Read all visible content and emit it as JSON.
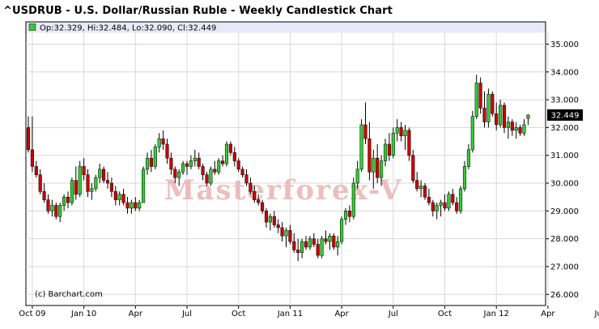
{
  "title": "^USDRUB - U.S. Dollar/Russian Ruble - Weekly Candlestick Chart",
  "legend": {
    "text": "Op:32.329, Hi:32.484, Lo:32.090, Cl:32.449",
    "color": "#33cc33"
  },
  "copyright": "(c) Barchart.com",
  "watermark": "Masterforex-V",
  "last_price_label": "32.449",
  "colors": {
    "up": "#33cc33",
    "down": "#cc0000",
    "grid": "#d8d8d8",
    "legend_band": "#e8e8f8",
    "price_tag_bg": "#000000",
    "price_tag_fg": "#ffffff"
  },
  "chart_data": {
    "type": "candlestick",
    "title": "^USDRUB - U.S. Dollar/Russian Ruble - Weekly Candlestick Chart",
    "y_ticks": [
      "35.000",
      "34.000",
      "33.000",
      "32.000",
      "31.000",
      "30.000",
      "29.000",
      "28.000",
      "27.000",
      "26.000"
    ],
    "y_tick_values": [
      35,
      34,
      33,
      32,
      31,
      30,
      29,
      28,
      27,
      26
    ],
    "x_ticks": [
      "Oct 09",
      "Jan 10",
      "Apr",
      "Jul",
      "Oct",
      "Jan 11",
      "Apr",
      "Jul",
      "Oct",
      "Jan 12",
      "Apr",
      "Jul"
    ],
    "x_tick_week_index": [
      1,
      14,
      27,
      40,
      53,
      66,
      79,
      92,
      105,
      118,
      131,
      144
    ],
    "ylim": [
      25.6,
      35.8
    ],
    "y_axis_side": "right",
    "grid": true,
    "candles": [
      [
        0,
        32.0,
        32.4,
        31.1,
        31.2
      ],
      [
        1,
        31.2,
        32.4,
        30.4,
        30.6
      ],
      [
        2,
        30.6,
        30.8,
        30.2,
        30.3
      ],
      [
        3,
        30.3,
        30.5,
        29.6,
        29.7
      ],
      [
        4,
        29.7,
        30.0,
        29.3,
        29.4
      ],
      [
        5,
        29.4,
        29.6,
        28.9,
        29.0
      ],
      [
        6,
        29.0,
        29.4,
        28.8,
        29.2
      ],
      [
        7,
        29.2,
        29.3,
        28.7,
        28.8
      ],
      [
        8,
        28.8,
        29.3,
        28.6,
        29.2
      ],
      [
        9,
        29.2,
        29.6,
        29.0,
        29.5
      ],
      [
        10,
        29.5,
        29.7,
        29.1,
        29.3
      ],
      [
        11,
        29.3,
        30.2,
        29.2,
        30.1
      ],
      [
        12,
        30.1,
        30.6,
        29.4,
        29.6
      ],
      [
        13,
        29.6,
        30.8,
        29.5,
        30.6
      ],
      [
        14,
        30.6,
        30.9,
        30.1,
        30.3
      ],
      [
        15,
        30.3,
        30.5,
        29.5,
        29.7
      ],
      [
        16,
        29.7,
        30.0,
        29.4,
        29.8
      ],
      [
        17,
        29.8,
        30.3,
        29.7,
        30.2
      ],
      [
        18,
        30.2,
        30.7,
        30.0,
        30.5
      ],
      [
        19,
        30.5,
        30.6,
        30.0,
        30.1
      ],
      [
        20,
        30.1,
        30.4,
        29.8,
        30.0
      ],
      [
        21,
        30.0,
        30.2,
        29.5,
        29.7
      ],
      [
        22,
        29.7,
        29.9,
        29.2,
        29.4
      ],
      [
        23,
        29.4,
        29.7,
        29.2,
        29.6
      ],
      [
        24,
        29.6,
        29.8,
        29.2,
        29.3
      ],
      [
        25,
        29.3,
        29.5,
        28.9,
        29.1
      ],
      [
        26,
        29.1,
        29.4,
        28.9,
        29.3
      ],
      [
        27,
        29.3,
        29.5,
        29.0,
        29.1
      ],
      [
        28,
        29.1,
        29.4,
        29.0,
        29.3
      ],
      [
        29,
        29.3,
        30.6,
        29.3,
        30.5
      ],
      [
        30,
        30.5,
        31.1,
        30.3,
        30.9
      ],
      [
        31,
        30.9,
        31.2,
        30.4,
        30.6
      ],
      [
        32,
        30.6,
        31.4,
        30.5,
        31.3
      ],
      [
        33,
        31.3,
        31.8,
        31.1,
        31.6
      ],
      [
        34,
        31.6,
        31.9,
        31.2,
        31.4
      ],
      [
        35,
        31.4,
        31.6,
        30.7,
        30.9
      ],
      [
        36,
        30.9,
        31.1,
        30.3,
        30.5
      ],
      [
        37,
        30.5,
        30.6,
        30.0,
        30.2
      ],
      [
        38,
        30.2,
        30.5,
        29.9,
        30.4
      ],
      [
        39,
        30.4,
        30.8,
        30.3,
        30.7
      ],
      [
        40,
        30.7,
        30.8,
        30.3,
        30.6
      ],
      [
        41,
        30.6,
        31.0,
        30.5,
        30.8
      ],
      [
        42,
        30.8,
        31.2,
        30.6,
        30.9
      ],
      [
        43,
        30.9,
        31.1,
        30.5,
        30.6
      ],
      [
        44,
        30.6,
        30.7,
        30.1,
        30.3
      ],
      [
        45,
        30.3,
        30.4,
        29.9,
        30.0
      ],
      [
        46,
        30.0,
        30.6,
        29.9,
        30.5
      ],
      [
        47,
        30.5,
        30.8,
        30.3,
        30.4
      ],
      [
        48,
        30.4,
        30.9,
        30.3,
        30.8
      ],
      [
        49,
        30.8,
        31.0,
        30.6,
        30.7
      ],
      [
        50,
        30.7,
        31.5,
        30.6,
        31.4
      ],
      [
        51,
        31.4,
        31.5,
        31.0,
        31.1
      ],
      [
        52,
        31.1,
        31.3,
        30.6,
        30.8
      ],
      [
        53,
        30.8,
        30.9,
        30.4,
        30.5
      ],
      [
        54,
        30.5,
        30.6,
        30.2,
        30.3
      ],
      [
        55,
        30.3,
        30.5,
        29.9,
        30.0
      ],
      [
        56,
        30.0,
        30.2,
        29.6,
        29.7
      ],
      [
        57,
        29.7,
        29.9,
        29.3,
        29.4
      ],
      [
        58,
        29.4,
        29.6,
        29.2,
        29.3
      ],
      [
        59,
        29.3,
        29.4,
        28.9,
        29.0
      ],
      [
        60,
        29.0,
        29.1,
        28.4,
        28.6
      ],
      [
        61,
        28.6,
        28.9,
        28.3,
        28.8
      ],
      [
        62,
        28.8,
        29.0,
        28.4,
        28.5
      ],
      [
        63,
        28.5,
        28.7,
        28.2,
        28.4
      ],
      [
        64,
        28.4,
        28.6,
        27.9,
        28.1
      ],
      [
        65,
        28.1,
        28.4,
        27.7,
        28.3
      ],
      [
        66,
        28.3,
        28.5,
        27.8,
        27.9
      ],
      [
        67,
        27.9,
        28.2,
        27.5,
        27.6
      ],
      [
        68,
        27.6,
        28.0,
        27.2,
        27.5
      ],
      [
        69,
        27.5,
        28.0,
        27.3,
        27.9
      ],
      [
        70,
        27.9,
        28.1,
        27.6,
        27.7
      ],
      [
        71,
        27.7,
        28.1,
        27.6,
        28.0
      ],
      [
        72,
        28.0,
        28.2,
        27.7,
        27.8
      ],
      [
        73,
        27.8,
        28.0,
        27.3,
        27.4
      ],
      [
        74,
        27.4,
        28.1,
        27.3,
        28.0
      ],
      [
        75,
        28.0,
        28.3,
        27.8,
        27.9
      ],
      [
        76,
        27.9,
        28.2,
        27.6,
        28.1
      ],
      [
        77,
        28.1,
        28.2,
        27.6,
        27.7
      ],
      [
        78,
        27.7,
        28.1,
        27.4,
        27.9
      ],
      [
        79,
        27.9,
        28.8,
        27.8,
        28.7
      ],
      [
        80,
        28.7,
        29.1,
        28.5,
        29.0
      ],
      [
        81,
        29.0,
        29.2,
        28.6,
        28.8
      ],
      [
        82,
        28.8,
        30.2,
        28.7,
        30.0
      ],
      [
        83,
        30.0,
        30.8,
        29.8,
        30.5
      ],
      [
        84,
        30.5,
        32.3,
        30.4,
        32.1
      ],
      [
        85,
        32.1,
        32.9,
        31.4,
        31.6
      ],
      [
        86,
        31.6,
        32.2,
        30.1,
        30.4
      ],
      [
        87,
        30.4,
        31.2,
        29.8,
        30.9
      ],
      [
        88,
        30.9,
        31.4,
        30.0,
        30.2
      ],
      [
        89,
        30.2,
        31.0,
        29.9,
        30.8
      ],
      [
        90,
        30.8,
        31.6,
        30.6,
        31.4
      ],
      [
        91,
        31.4,
        31.8,
        30.8,
        31.0
      ],
      [
        92,
        31.0,
        32.0,
        30.9,
        31.8
      ],
      [
        93,
        31.8,
        32.3,
        31.5,
        32.0
      ],
      [
        94,
        32.0,
        32.2,
        31.5,
        31.7
      ],
      [
        95,
        31.7,
        32.1,
        31.2,
        31.9
      ],
      [
        96,
        31.9,
        32.0,
        30.8,
        31.0
      ],
      [
        97,
        31.0,
        31.2,
        30.0,
        30.1
      ],
      [
        98,
        30.1,
        30.4,
        29.7,
        29.8
      ],
      [
        99,
        29.8,
        30.1,
        29.5,
        29.9
      ],
      [
        100,
        29.9,
        30.0,
        29.4,
        29.5
      ],
      [
        101,
        29.5,
        29.8,
        29.2,
        29.3
      ],
      [
        102,
        29.3,
        29.4,
        28.8,
        29.0
      ],
      [
        103,
        29.0,
        29.3,
        28.7,
        29.2
      ],
      [
        104,
        29.2,
        29.4,
        28.8,
        29.3
      ],
      [
        105,
        29.3,
        29.6,
        29.0,
        29.1
      ],
      [
        106,
        29.1,
        29.7,
        29.0,
        29.6
      ],
      [
        107,
        29.6,
        29.8,
        29.2,
        29.3
      ],
      [
        108,
        29.3,
        29.5,
        28.9,
        29.0
      ],
      [
        109,
        29.0,
        29.9,
        28.9,
        29.8
      ],
      [
        110,
        29.8,
        30.8,
        29.7,
        30.6
      ],
      [
        111,
        30.6,
        31.4,
        30.5,
        31.2
      ],
      [
        112,
        31.2,
        32.6,
        31.1,
        32.4
      ],
      [
        113,
        32.4,
        33.9,
        32.3,
        33.6
      ],
      [
        114,
        33.6,
        33.8,
        32.5,
        32.7
      ],
      [
        115,
        32.7,
        33.3,
        32.0,
        32.2
      ],
      [
        116,
        32.2,
        33.4,
        32.0,
        33.2
      ],
      [
        117,
        33.2,
        33.3,
        32.4,
        32.5
      ],
      [
        118,
        32.5,
        32.9,
        31.9,
        32.1
      ],
      [
        119,
        32.1,
        33.0,
        32.0,
        32.8
      ],
      [
        120,
        32.8,
        32.9,
        31.8,
        32.0
      ],
      [
        121,
        32.0,
        32.4,
        31.6,
        32.2
      ],
      [
        122,
        32.2,
        32.3,
        31.7,
        31.9
      ],
      [
        123,
        31.9,
        32.2,
        31.6,
        32.0
      ],
      [
        124,
        32.0,
        32.1,
        31.7,
        31.8
      ],
      [
        125,
        31.8,
        32.3,
        31.7,
        32.1
      ],
      [
        126,
        32.33,
        32.48,
        32.09,
        32.45
      ]
    ]
  }
}
